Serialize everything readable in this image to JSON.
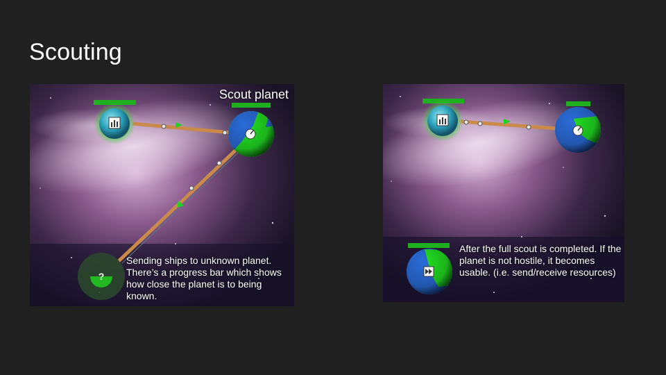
{
  "slide": {
    "title": "Scouting"
  },
  "left_panel": {
    "label": "Scout planet",
    "caption": "Sending ships to unknown planet. There’s a progress bar which shows how close the planet is to being known.",
    "unknown_planet_symbol": "?",
    "scout_progress": 0.6
  },
  "right_panel": {
    "caption": "After the full scout is completed. If the planet is not hostile, it becomes usable. (i.e. send/receive resources)"
  },
  "colors": {
    "health_bar": "#1fb01f",
    "route": "#c98a4a",
    "ship_arrow": "#1fd21f",
    "planet_green": "#22e022",
    "planet_blue": "#2a6cd8"
  },
  "icons": [
    "factory-icon",
    "gauge-icon",
    "fast-forward-icon",
    "question-icon"
  ]
}
